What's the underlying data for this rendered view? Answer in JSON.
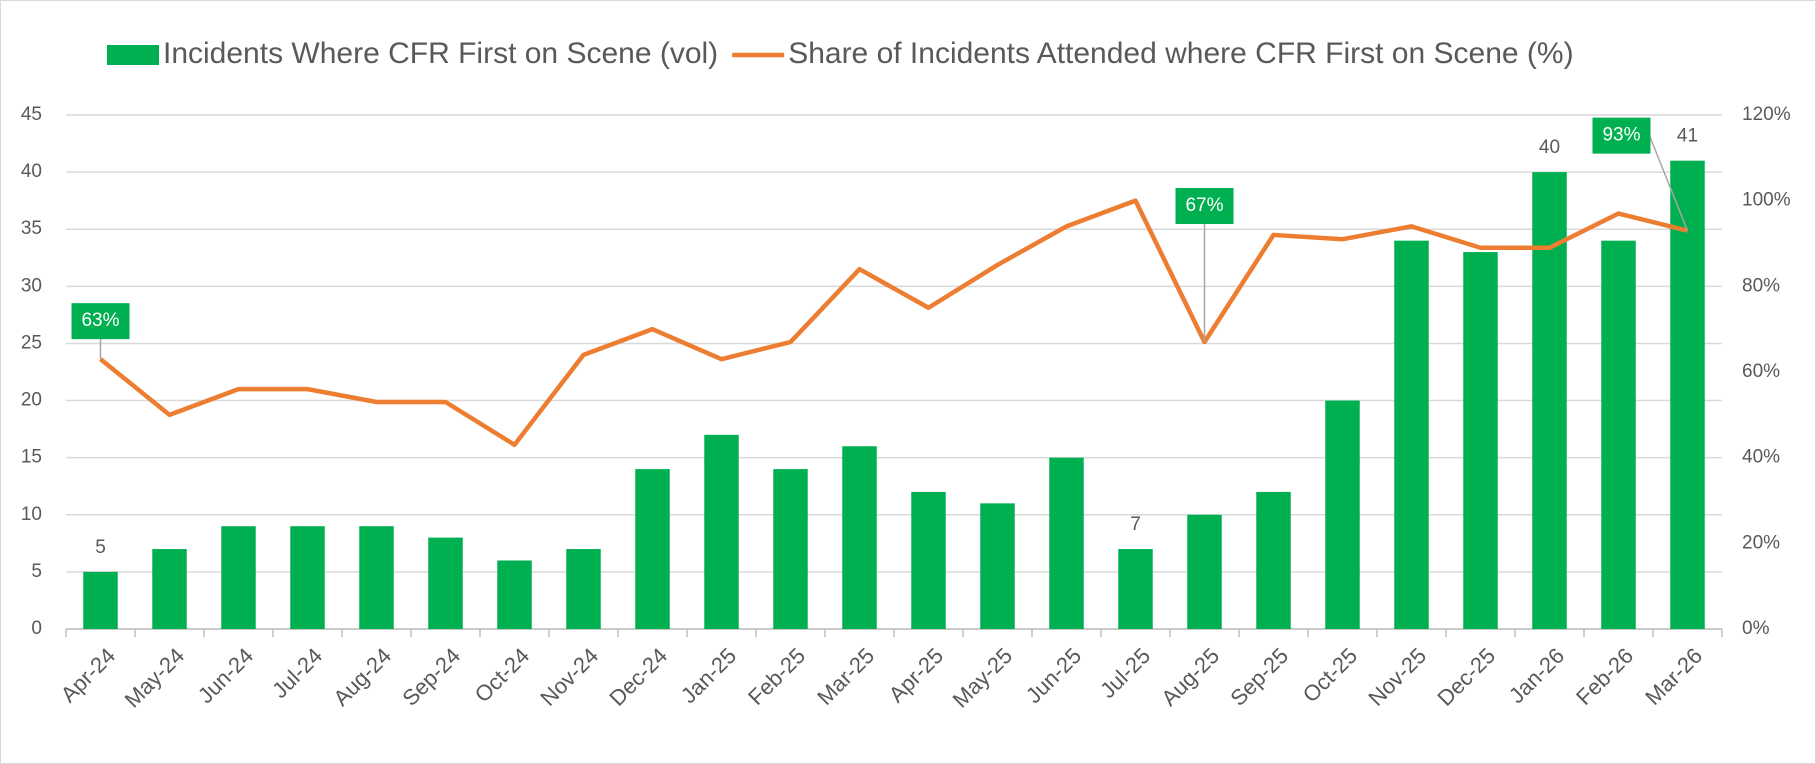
{
  "chart_data": {
    "type": "bar_line",
    "categories": [
      "Apr-24",
      "May-24",
      "Jun-24",
      "Jul-24",
      "Aug-24",
      "Sep-24",
      "Oct-24",
      "Nov-24",
      "Dec-24",
      "Jan-25",
      "Feb-25",
      "Mar-25",
      "Apr-25",
      "May-25",
      "Jun-25",
      "Jul-25",
      "Aug-25",
      "Sep-25",
      "Oct-25",
      "Nov-25",
      "Dec-25",
      "Jan-26",
      "Feb-26",
      "Mar-26"
    ],
    "series": [
      {
        "name": "Incidents Where CFR First on Scene (vol)",
        "type": "bar",
        "color": "#00b050",
        "values": [
          5,
          7,
          9,
          9,
          9,
          8,
          6,
          7,
          14,
          17,
          14,
          16,
          12,
          11,
          15,
          7,
          10,
          12,
          20,
          34,
          33,
          40,
          34,
          41
        ],
        "value_labels": [
          "5",
          null,
          null,
          null,
          null,
          null,
          null,
          null,
          null,
          null,
          null,
          null,
          null,
          null,
          null,
          "7",
          null,
          null,
          null,
          null,
          null,
          "40",
          null,
          "41"
        ]
      },
      {
        "name": "Share of Incidents Attended where CFR First on Scene (%)",
        "type": "line",
        "color": "#ed7d31",
        "axis": "y2",
        "values": [
          63,
          50,
          56,
          56,
          53,
          53,
          43,
          64,
          70,
          63,
          67,
          84,
          75,
          85,
          94,
          100,
          67,
          92,
          91,
          94,
          89,
          89,
          97,
          93
        ],
        "value_labels": [
          "63%",
          null,
          null,
          null,
          null,
          null,
          null,
          null,
          null,
          null,
          null,
          null,
          null,
          null,
          null,
          null,
          "67%",
          null,
          null,
          null,
          null,
          null,
          null,
          "93%"
        ]
      }
    ],
    "ylim": [
      0,
      45
    ],
    "yticks": [
      0,
      5,
      10,
      15,
      20,
      25,
      30,
      35,
      40,
      45
    ],
    "y2lim": [
      0,
      120
    ],
    "y2ticks": [
      {
        "value": 0,
        "label": "0%"
      },
      {
        "value": 20,
        "label": "20%"
      },
      {
        "value": 40,
        "label": "40%"
      },
      {
        "value": 60,
        "label": "60%"
      },
      {
        "value": 80,
        "label": "80%"
      },
      {
        "value": 100,
        "label": "100%"
      },
      {
        "value": 120,
        "label": "120%"
      }
    ],
    "grid": true,
    "legend": "top"
  }
}
